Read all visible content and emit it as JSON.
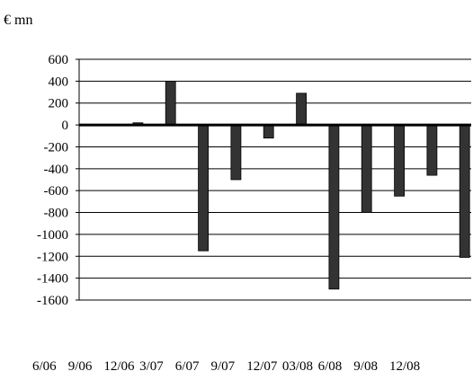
{
  "chart_data": {
    "type": "bar",
    "unit_label": "€ mn",
    "categories": [
      "6/06",
      "9/06",
      "12/06",
      "3/07",
      "6/07",
      "9/07",
      "12/07",
      "03/08",
      "6/08",
      "9/08",
      "12/08",
      ""
    ],
    "values": [
      0,
      20,
      400,
      -1150,
      -500,
      -120,
      290,
      -1500,
      -800,
      -650,
      -460,
      -1210
    ],
    "yticks": [
      600,
      400,
      200,
      0,
      -200,
      -400,
      -600,
      -800,
      -1000,
      -1200,
      -1400,
      -1600
    ],
    "ylim": [
      -1600,
      600
    ],
    "grid": true,
    "legend": "none",
    "bar_color": "#333333",
    "title": "",
    "xlabel": "",
    "ylabel": ""
  }
}
